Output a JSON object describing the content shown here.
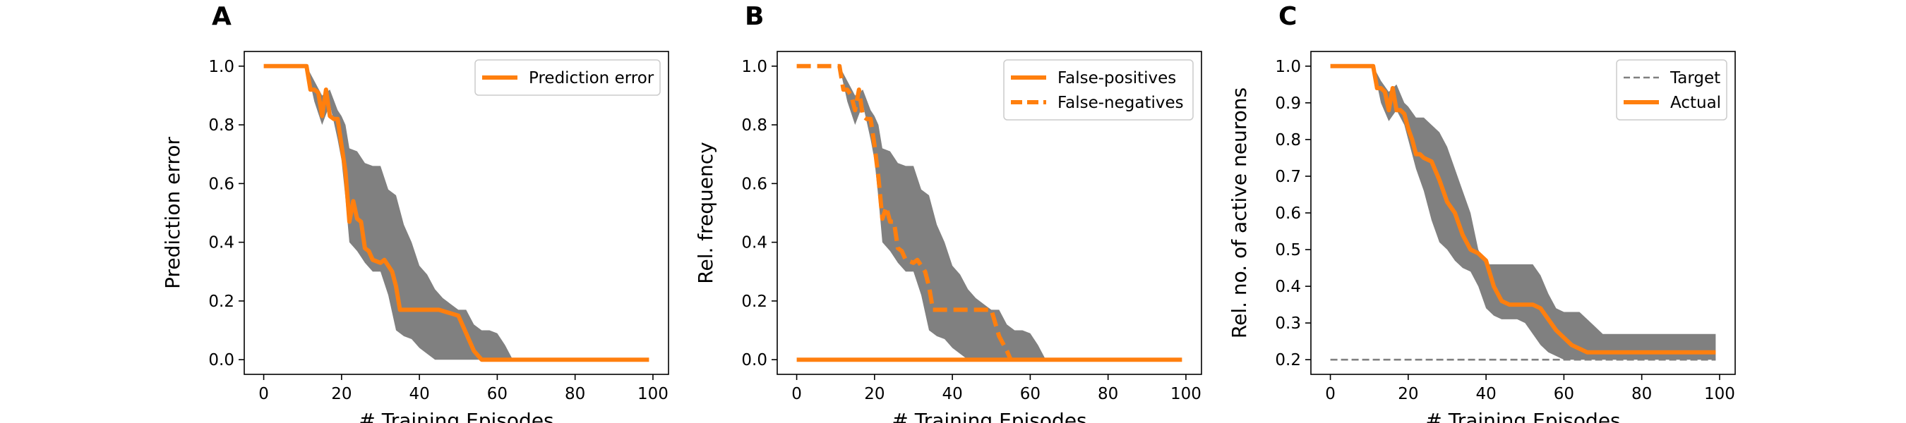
{
  "colors": {
    "line": "#ff7f0e",
    "band": "#808080",
    "target": "#808080",
    "axis": "#000000",
    "legend_border": "#cccccc"
  },
  "chart_data": [
    {
      "type": "line",
      "panel_label": "A",
      "xlabel": "# Training Episodes",
      "ylabel": "Prediction error",
      "xlim": [
        -5,
        104
      ],
      "ylim": [
        -0.05,
        1.05
      ],
      "xticks": [
        0,
        20,
        40,
        60,
        80,
        100
      ],
      "yticks": [
        "0.0",
        "0.2",
        "0.4",
        "0.6",
        "0.8",
        "1.0"
      ],
      "grid": false,
      "legend": "top-right",
      "band": {
        "x": [
          0,
          11,
          13,
          15,
          17,
          19,
          20,
          21,
          22,
          24,
          26,
          28,
          30,
          32,
          34,
          36,
          38,
          40,
          42,
          44,
          46,
          48,
          50,
          52,
          54,
          56,
          58,
          60,
          62,
          64,
          66,
          68,
          70,
          80,
          90,
          100
        ],
        "upper": [
          1.0,
          1.0,
          0.95,
          0.9,
          0.92,
          0.85,
          0.83,
          0.8,
          0.72,
          0.71,
          0.67,
          0.66,
          0.66,
          0.58,
          0.56,
          0.46,
          0.4,
          0.32,
          0.29,
          0.24,
          0.21,
          0.19,
          0.17,
          0.17,
          0.12,
          0.1,
          0.1,
          0.09,
          0.05,
          0.0,
          0.0,
          0.0,
          0.0,
          0.0,
          0.0,
          0.0
        ],
        "lower": [
          1.0,
          1.0,
          0.88,
          0.8,
          0.87,
          0.75,
          0.68,
          0.55,
          0.4,
          0.37,
          0.33,
          0.3,
          0.3,
          0.22,
          0.1,
          0.08,
          0.07,
          0.04,
          0.02,
          0.0,
          0.0,
          0.0,
          0.0,
          0.0,
          0.0,
          0.0,
          0.0,
          0.0,
          0.0,
          0.0,
          0.0,
          0.0,
          0.0,
          0.0,
          0.0,
          0.0
        ]
      },
      "series": [
        {
          "name": "Prediction error",
          "style": "solid",
          "x": [
            0,
            11,
            12,
            13,
            14,
            15,
            16,
            17,
            18,
            19,
            20,
            21,
            22,
            23,
            24,
            25,
            26,
            27,
            28,
            30,
            31,
            32,
            33,
            34,
            35,
            36,
            38,
            40,
            45,
            50,
            52,
            54,
            56,
            60,
            70,
            80,
            90,
            99
          ],
          "y": [
            1.0,
            1.0,
            0.92,
            0.92,
            0.91,
            0.83,
            0.92,
            0.83,
            0.82,
            0.82,
            0.73,
            0.64,
            0.47,
            0.54,
            0.48,
            0.47,
            0.38,
            0.37,
            0.34,
            0.33,
            0.34,
            0.32,
            0.3,
            0.25,
            0.17,
            0.17,
            0.17,
            0.17,
            0.17,
            0.15,
            0.09,
            0.03,
            0.0,
            0.0,
            0.0,
            0.0,
            0.0,
            0.0
          ]
        }
      ]
    },
    {
      "type": "line",
      "panel_label": "B",
      "xlabel": "# Training Episodes",
      "ylabel": "Rel. frequency",
      "xlim": [
        -5,
        104
      ],
      "ylim": [
        -0.05,
        1.05
      ],
      "xticks": [
        0,
        20,
        40,
        60,
        80,
        100
      ],
      "yticks": [
        "0.0",
        "0.2",
        "0.4",
        "0.6",
        "0.8",
        "1.0"
      ],
      "grid": false,
      "legend": "top-right",
      "band": {
        "x": [
          0,
          11,
          13,
          15,
          17,
          19,
          20,
          21,
          22,
          24,
          26,
          28,
          30,
          32,
          34,
          36,
          38,
          40,
          42,
          44,
          46,
          48,
          50,
          52,
          54,
          56,
          58,
          60,
          62,
          64,
          66,
          68,
          70,
          80,
          90,
          100
        ],
        "upper": [
          1.0,
          1.0,
          0.95,
          0.9,
          0.92,
          0.85,
          0.83,
          0.8,
          0.72,
          0.71,
          0.67,
          0.66,
          0.66,
          0.58,
          0.56,
          0.46,
          0.4,
          0.32,
          0.29,
          0.24,
          0.21,
          0.19,
          0.17,
          0.17,
          0.12,
          0.1,
          0.1,
          0.09,
          0.05,
          0.0,
          0.0,
          0.0,
          0.0,
          0.0,
          0.0,
          0.0
        ],
        "lower": [
          1.0,
          1.0,
          0.88,
          0.8,
          0.87,
          0.75,
          0.68,
          0.55,
          0.4,
          0.37,
          0.33,
          0.3,
          0.3,
          0.22,
          0.1,
          0.08,
          0.07,
          0.04,
          0.02,
          0.0,
          0.0,
          0.0,
          0.0,
          0.0,
          0.0,
          0.0,
          0.0,
          0.0,
          0.0,
          0.0,
          0.0,
          0.0,
          0.0,
          0.0,
          0.0,
          0.0
        ]
      },
      "series": [
        {
          "name": "False-positives",
          "style": "solid",
          "x": [
            0,
            99
          ],
          "y": [
            0.0,
            0.0
          ]
        },
        {
          "name": "False-negatives",
          "style": "dashed",
          "x": [
            0,
            11,
            12,
            13,
            14,
            15,
            16,
            17,
            18,
            19,
            20,
            21,
            22,
            23,
            24,
            25,
            26,
            27,
            28,
            30,
            31,
            32,
            33,
            34,
            35,
            36,
            38,
            40,
            45,
            50,
            52,
            54,
            55
          ],
          "y": [
            1.0,
            1.0,
            0.92,
            0.92,
            0.9,
            0.85,
            0.92,
            0.83,
            0.82,
            0.82,
            0.73,
            0.62,
            0.48,
            0.52,
            0.47,
            0.47,
            0.38,
            0.37,
            0.34,
            0.33,
            0.34,
            0.32,
            0.3,
            0.25,
            0.17,
            0.17,
            0.17,
            0.17,
            0.17,
            0.17,
            0.08,
            0.03,
            0.0
          ]
        }
      ]
    },
    {
      "type": "line",
      "panel_label": "C",
      "xlabel": "# Training Episodes",
      "ylabel": "Rel. no. of active neurons",
      "xlim": [
        -5,
        104
      ],
      "ylim": [
        0.16,
        1.04
      ],
      "xticks": [
        0,
        20,
        40,
        60,
        80,
        100
      ],
      "yticks": [
        "0.2",
        "0.3",
        "0.4",
        "0.5",
        "0.6",
        "0.7",
        "0.8",
        "0.9",
        "1.0"
      ],
      "grid": false,
      "legend": "top-right",
      "band": {
        "x": [
          0,
          11,
          13,
          15,
          17,
          19,
          20,
          22,
          24,
          26,
          28,
          30,
          32,
          34,
          36,
          38,
          40,
          42,
          44,
          46,
          48,
          50,
          52,
          54,
          56,
          58,
          60,
          62,
          64,
          66,
          68,
          70,
          80,
          90,
          99
        ],
        "upper": [
          1.0,
          1.0,
          0.96,
          0.93,
          0.95,
          0.9,
          0.89,
          0.86,
          0.86,
          0.84,
          0.82,
          0.78,
          0.72,
          0.66,
          0.6,
          0.5,
          0.46,
          0.46,
          0.46,
          0.46,
          0.46,
          0.46,
          0.46,
          0.43,
          0.38,
          0.34,
          0.33,
          0.33,
          0.33,
          0.31,
          0.29,
          0.27,
          0.27,
          0.27,
          0.27
        ],
        "lower": [
          1.0,
          1.0,
          0.9,
          0.85,
          0.88,
          0.84,
          0.8,
          0.72,
          0.66,
          0.58,
          0.52,
          0.5,
          0.47,
          0.45,
          0.44,
          0.4,
          0.34,
          0.32,
          0.31,
          0.31,
          0.31,
          0.3,
          0.27,
          0.24,
          0.22,
          0.21,
          0.2,
          0.2,
          0.2,
          0.2,
          0.2,
          0.2,
          0.2,
          0.2,
          0.2
        ]
      },
      "series": [
        {
          "name": "Target",
          "style": "dashed-thin",
          "x": [
            0,
            99
          ],
          "y": [
            0.2,
            0.2
          ]
        },
        {
          "name": "Actual",
          "style": "solid",
          "x": [
            0,
            11,
            12,
            13,
            14,
            15,
            16,
            17,
            18,
            19,
            20,
            21,
            22,
            23,
            24,
            26,
            28,
            30,
            32,
            34,
            36,
            38,
            40,
            42,
            44,
            46,
            48,
            50,
            52,
            54,
            56,
            58,
            60,
            62,
            64,
            66,
            68,
            70,
            80,
            90,
            99
          ],
          "y": [
            1.0,
            1.0,
            0.94,
            0.94,
            0.93,
            0.88,
            0.94,
            0.88,
            0.88,
            0.87,
            0.83,
            0.8,
            0.76,
            0.76,
            0.75,
            0.74,
            0.69,
            0.63,
            0.6,
            0.54,
            0.5,
            0.49,
            0.47,
            0.4,
            0.36,
            0.35,
            0.35,
            0.35,
            0.35,
            0.34,
            0.31,
            0.28,
            0.26,
            0.24,
            0.23,
            0.22,
            0.22,
            0.22,
            0.22,
            0.22,
            0.22
          ]
        }
      ]
    }
  ]
}
